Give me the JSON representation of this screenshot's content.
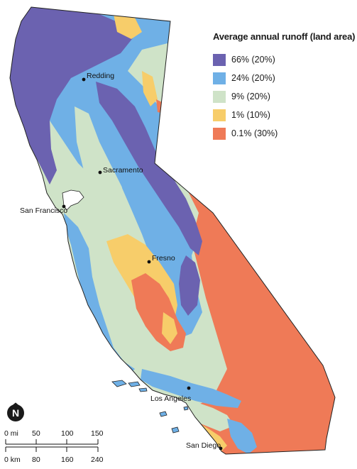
{
  "legend": {
    "title": "Average annual runoff (land area)",
    "items": [
      {
        "label": "66% (20%)",
        "color": "#6b62b0"
      },
      {
        "label": "24% (20%)",
        "color": "#6fb0e6"
      },
      {
        "label": "9% (20%)",
        "color": "#cfe3c8"
      },
      {
        "label": "1% (10%)",
        "color": "#f7cd6a"
      },
      {
        "label": "0.1% (30%)",
        "color": "#ef7a57"
      }
    ]
  },
  "cities": {
    "redding": "Redding",
    "sacramento": "Sacramento",
    "san_francisco": "San Francisco",
    "fresno": "Fresno",
    "los_angeles": "Los Angeles",
    "san_diego": "San Diego"
  },
  "scale_bar": {
    "miles": {
      "unit": "mi",
      "ticks": [
        "0 mi",
        "50",
        "100",
        "150"
      ]
    },
    "kilometers": {
      "unit": "km",
      "ticks": [
        "0 km",
        "80",
        "160",
        "240"
      ]
    }
  },
  "north_arrow": {
    "icon": "north-arrow-icon",
    "letter": "N"
  }
}
